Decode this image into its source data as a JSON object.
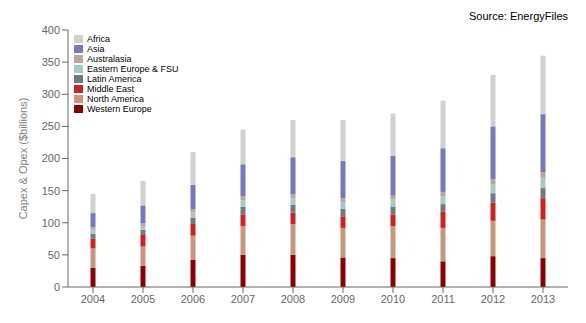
{
  "chart_data": {
    "type": "bar",
    "stacked": true,
    "ylabel": "Capex & Opex ($billions)",
    "annotations": [
      "Source: EnergyFiles"
    ],
    "categories": [
      "2004",
      "2005",
      "2006",
      "2007",
      "2008",
      "2009",
      "2010",
      "2011",
      "2012",
      "2013"
    ],
    "series": [
      {
        "name": "Western Europe",
        "color": "#8B0000",
        "values": [
          30,
          33,
          42,
          50,
          50,
          46,
          45,
          40,
          48,
          45
        ]
      },
      {
        "name": "North America",
        "color": "#C8967E",
        "values": [
          30,
          30,
          38,
          45,
          48,
          46,
          50,
          52,
          55,
          60
        ]
      },
      {
        "name": "Middle East",
        "color": "#CC2222",
        "values": [
          15,
          18,
          18,
          18,
          18,
          18,
          18,
          25,
          28,
          32
        ]
      },
      {
        "name": "Latin America",
        "color": "#777777",
        "values": [
          8,
          8,
          10,
          12,
          12,
          12,
          12,
          12,
          15,
          17
        ]
      },
      {
        "name": "Eastern Europe & FSU",
        "color": "#A8C8C8",
        "values": [
          6,
          6,
          8,
          10,
          10,
          10,
          11,
          12,
          14,
          16
        ]
      },
      {
        "name": "Australasia",
        "color": "#B8A898",
        "values": [
          4,
          4,
          5,
          6,
          6,
          6,
          6,
          7,
          8,
          9
        ]
      },
      {
        "name": "Asia",
        "color": "#7777BB",
        "values": [
          22,
          28,
          38,
          50,
          58,
          58,
          62,
          68,
          82,
          90
        ]
      },
      {
        "name": "Africa",
        "color": "#D0D0D0",
        "values": [
          30,
          38,
          51,
          54,
          58,
          64,
          66,
          74,
          80,
          91
        ]
      }
    ],
    "ylim": [
      0,
      400
    ],
    "yticks": [
      0,
      50,
      100,
      150,
      200,
      250,
      300,
      350,
      400
    ],
    "grid": false,
    "legend": "upper left"
  }
}
